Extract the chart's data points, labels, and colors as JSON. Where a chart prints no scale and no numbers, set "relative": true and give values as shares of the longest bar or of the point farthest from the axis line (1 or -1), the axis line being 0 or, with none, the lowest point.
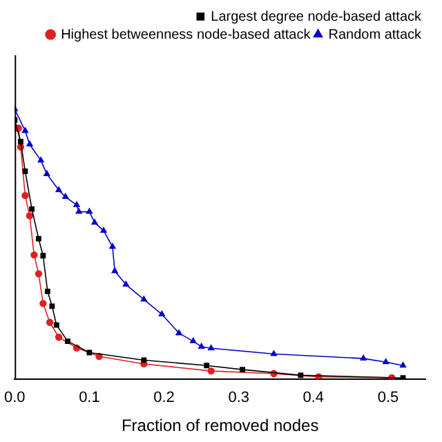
{
  "chart_data": {
    "type": "line",
    "relative": true,
    "xlabel": "Fraction of removed nodes",
    "xlim": [
      0,
      0.55
    ],
    "xticks": [
      {
        "value": 0,
        "label": "0.0"
      },
      0.1,
      0.2,
      0.3,
      0.4,
      0.5
    ],
    "grid": false,
    "legend": "top right",
    "line_style": "solid",
    "series": [
      {
        "name": "Largest degree node-based attack",
        "color": "#000000",
        "marker": "square",
        "x": [
          0,
          0.008,
          0.014,
          0.023,
          0.032,
          0.038,
          0.044,
          0.05,
          0.056,
          0.071,
          0.1,
          0.173,
          0.257,
          0.305,
          0.383,
          0.52
        ],
        "values": [
          0.96,
          0.88,
          0.77,
          0.63,
          0.52,
          0.457,
          0.325,
          0.27,
          0.2,
          0.14,
          0.098,
          0.07,
          0.05,
          0.035,
          0.014,
          0.004
        ]
      },
      {
        "name": "Highest betweenness node-based attack",
        "color": "#e02020",
        "marker": "circle",
        "x": [
          0.002,
          0.005,
          0.008,
          0.014,
          0.02,
          0.026,
          0.032,
          0.038,
          0.047,
          0.059,
          0.083,
          0.113,
          0.173,
          0.263,
          0.347,
          0.407,
          0.505
        ],
        "values": [
          0.93,
          0.93,
          0.86,
          0.68,
          0.605,
          0.46,
          0.39,
          0.28,
          0.21,
          0.155,
          0.115,
          0.084,
          0.056,
          0.03,
          0.02,
          0.008,
          0.005
        ]
      },
      {
        "name": "Random attack",
        "color": "#0000cc",
        "marker": "triangle",
        "x": [
          0,
          0.014,
          0.02,
          0.035,
          0.043,
          0.059,
          0.068,
          0.083,
          0.086,
          0.1,
          0.107,
          0.119,
          0.131,
          0.134,
          0.149,
          0.173,
          0.197,
          0.22,
          0.239,
          0.25,
          0.263,
          0.347,
          0.467,
          0.497,
          0.52
        ],
        "values": [
          1,
          0.92,
          0.87,
          0.81,
          0.76,
          0.7,
          0.675,
          0.645,
          0.62,
          0.62,
          0.58,
          0.55,
          0.49,
          0.4,
          0.35,
          0.295,
          0.24,
          0.17,
          0.14,
          0.12,
          0.114,
          0.093,
          0.076,
          0.063,
          0.05
        ]
      }
    ]
  }
}
